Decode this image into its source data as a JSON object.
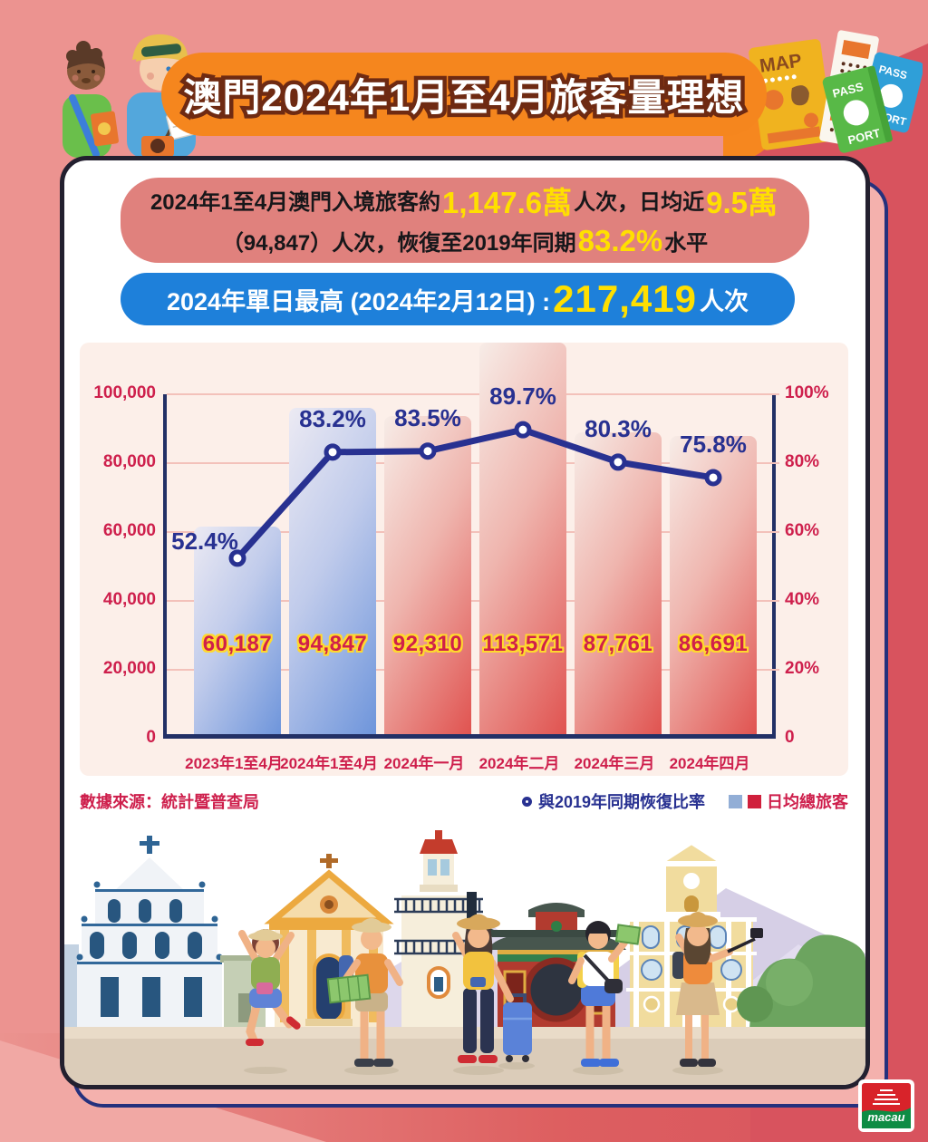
{
  "page": {
    "title": "澳門2024年1月至4月旅客量理想"
  },
  "summary": {
    "l1a": "2024年1至4月澳門入境旅客約",
    "l1b": "1,147.6萬",
    "l1c": "人次，日均近",
    "l1d": "9.5萬",
    "l2a": "（94,847）人次，恢復至2019年同期",
    "l2b": "83.2%",
    "l2c": "水平"
  },
  "peak": {
    "label": "2024年單日最高 (2024年2月12日) : ",
    "value": "217,419",
    "unit": "人次"
  },
  "chart_data": {
    "type": "combo bar+line",
    "categories": [
      "2023年1至4月",
      "2024年1至4月",
      "2024年一月",
      "2024年二月",
      "2024年三月",
      "2024年四月"
    ],
    "series": [
      {
        "name": "日均總旅客",
        "chart": "bar",
        "values": [
          60187,
          94847,
          92310,
          113571,
          87761,
          86691
        ],
        "labels": [
          "60,187",
          "94,847",
          "92,310",
          "113,571",
          "87,761",
          "86,691"
        ]
      },
      {
        "name": "與2019年同期恢復比率",
        "chart": "line",
        "values": [
          52.4,
          83.2,
          83.5,
          89.7,
          80.3,
          75.8
        ],
        "labels": [
          "52.4%",
          "83.2%",
          "83.5%",
          "89.7%",
          "80.3%",
          "75.8%"
        ]
      }
    ],
    "bar_palette": [
      "blue",
      "blue",
      "red",
      "red",
      "red",
      "red"
    ],
    "left_axis": {
      "max": 100000,
      "ticks": [
        "0",
        "20,000",
        "40,000",
        "60,000",
        "80,000",
        "100,000"
      ]
    },
    "right_axis": {
      "max": 100,
      "ticks": [
        "0",
        "20%",
        "40%",
        "60%",
        "80%",
        "100%"
      ]
    },
    "grid": true,
    "legend_position": "bottom-right"
  },
  "legend": {
    "line_label": "與2019年同期恢復比率",
    "bar_label": "日均總旅客"
  },
  "source": "數據來源：統計暨普查局",
  "decorations": {
    "map_label": "MAP",
    "passport_top": "PASS",
    "passport_bottom": "PORT",
    "logo_text": "macau"
  },
  "colors": {
    "accent_orange": "#f5861e",
    "pill_pink": "#e0817d",
    "pill_blue": "#1e80da",
    "yellow": "#ffdf00",
    "navy": "#283191",
    "crimson": "#d0204a",
    "bar_blue": "#6e95db",
    "bar_red": "#e05350",
    "legend_blue": "#92aed6",
    "legend_red": "#d0203c"
  }
}
